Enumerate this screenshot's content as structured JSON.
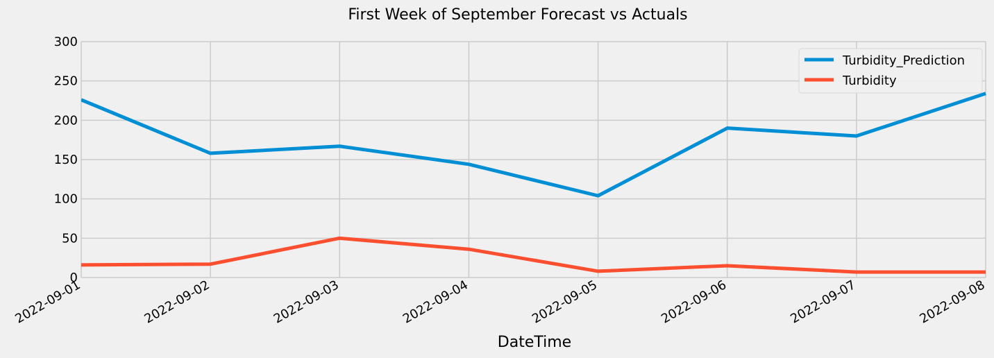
{
  "chart_data": {
    "type": "line",
    "title": "First Week of September Forecast vs Actuals",
    "xlabel": "DateTime",
    "ylabel": "",
    "x": [
      "2022-09-01",
      "2022-09-02",
      "2022-09-03",
      "2022-09-04",
      "2022-09-05",
      "2022-09-06",
      "2022-09-07",
      "2022-09-08"
    ],
    "x_tick_labels": [
      "2022-09-01",
      "2022-09-02",
      "2022-09-03",
      "2022-09-04",
      "2022-09-05",
      "2022-09-06",
      "2022-09-07",
      "2022-09-08"
    ],
    "ylim": [
      0,
      300
    ],
    "y_ticks": [
      0,
      50,
      100,
      150,
      200,
      250,
      300
    ],
    "series": [
      {
        "name": "Turbidity_Prediction",
        "color": "#008fd5",
        "values": [
          226,
          158,
          167,
          144,
          104,
          190,
          180,
          234
        ]
      },
      {
        "name": "Turbidity",
        "color": "#fc4f30",
        "values": [
          16,
          17,
          50,
          36,
          8,
          15,
          7,
          7
        ]
      }
    ],
    "grid": true,
    "legend_position": "top-right",
    "background_color": "#f0f0f0",
    "grid_color": "#cbcbcb"
  }
}
